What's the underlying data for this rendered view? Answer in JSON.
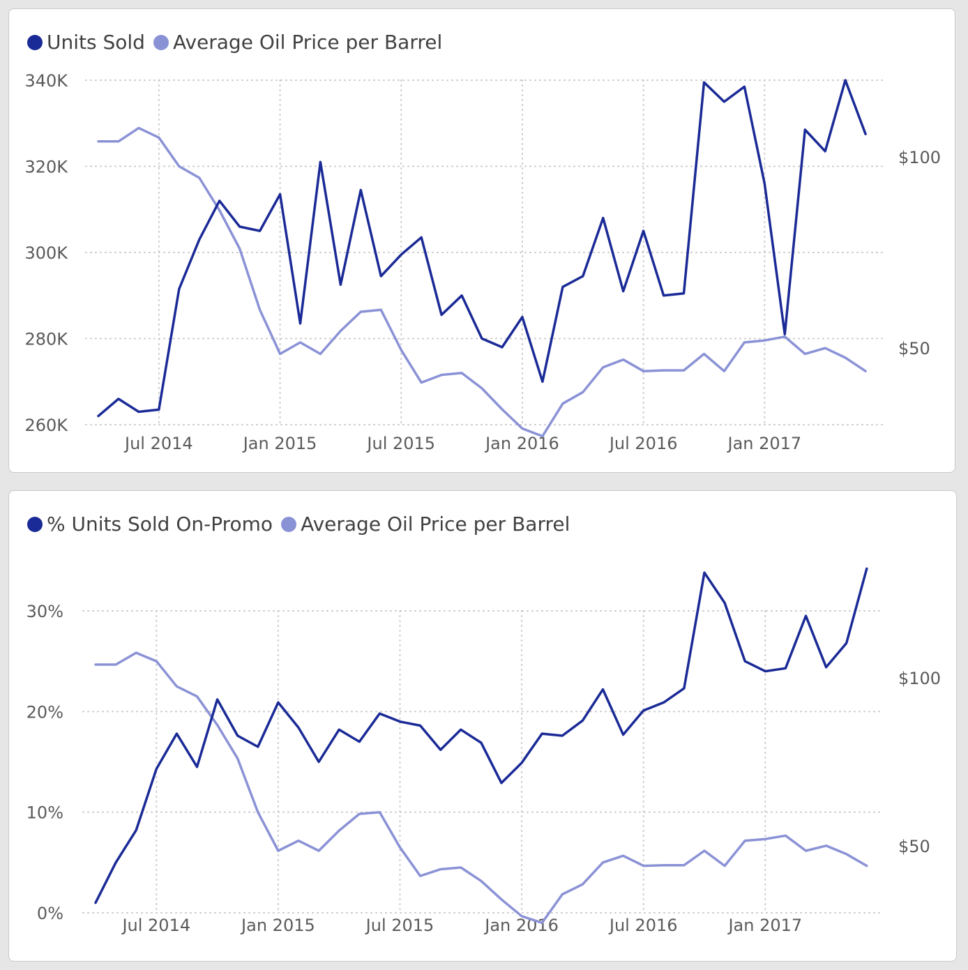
{
  "colors": {
    "series_primary": "#1a2a96",
    "series_secondary": "#8a92d6",
    "grid": "#c8c8c8",
    "text": "#5a5a5a"
  },
  "chart_data": [
    {
      "type": "line",
      "legend_position": "top-left",
      "grid": true,
      "x": [
        "2014-04",
        "2014-05",
        "2014-06",
        "2014-07",
        "2014-08",
        "2014-09",
        "2014-10",
        "2014-11",
        "2014-12",
        "2015-01",
        "2015-02",
        "2015-03",
        "2015-04",
        "2015-05",
        "2015-06",
        "2015-07",
        "2015-08",
        "2015-09",
        "2015-10",
        "2015-11",
        "2015-12",
        "2016-01",
        "2016-02",
        "2016-03",
        "2016-04",
        "2016-05",
        "2016-06",
        "2016-07",
        "2016-08",
        "2016-09",
        "2016-10",
        "2016-11",
        "2016-12",
        "2017-01",
        "2017-02",
        "2017-03",
        "2017-04",
        "2017-05",
        "2017-06"
      ],
      "x_ticks": [
        "Jul 2014",
        "Jan 2015",
        "Jul 2015",
        "Jan 2016",
        "Jul 2016",
        "Jan 2017"
      ],
      "y_left_ticks": [
        "340K",
        "320K",
        "300K",
        "280K",
        "260K"
      ],
      "y_left_lim": [
        260000,
        340000
      ],
      "y_right_ticks": [
        "$100",
        "$50"
      ],
      "y_right_lim": [
        30,
        120
      ],
      "series": [
        {
          "name": "Units Sold",
          "axis": "left",
          "values": [
            262000,
            266000,
            263000,
            263500,
            291500,
            303000,
            312000,
            306000,
            305000,
            313500,
            283500,
            321000,
            292500,
            314500,
            294500,
            299500,
            303500,
            285500,
            290000,
            280000,
            278000,
            285000,
            270000,
            292000,
            294500,
            308000,
            291000,
            305000,
            290000,
            290500,
            339500,
            335000,
            338500,
            316000,
            281000,
            328500,
            323500,
            340000,
            327500
          ]
        },
        {
          "name": "Average Oil Price per Barrel",
          "axis": "right",
          "values": [
            104,
            104,
            107.5,
            105,
            97.5,
            94.5,
            86,
            76,
            60,
            48.5,
            51.5,
            48.5,
            54.5,
            59.5,
            60,
            49.5,
            41,
            43,
            43.5,
            39.5,
            34,
            29,
            27,
            35.5,
            38.5,
            45,
            47,
            44,
            44.2,
            44.2,
            48.5,
            44,
            51.5,
            52,
            53,
            48.5,
            50,
            47.5,
            44
          ]
        }
      ]
    },
    {
      "type": "line",
      "legend_position": "top-left",
      "grid": true,
      "x": [
        "2014-04",
        "2014-05",
        "2014-06",
        "2014-07",
        "2014-08",
        "2014-09",
        "2014-10",
        "2014-11",
        "2014-12",
        "2015-01",
        "2015-02",
        "2015-03",
        "2015-04",
        "2015-05",
        "2015-06",
        "2015-07",
        "2015-08",
        "2015-09",
        "2015-10",
        "2015-11",
        "2015-12",
        "2016-01",
        "2016-02",
        "2016-03",
        "2016-04",
        "2016-05",
        "2016-06",
        "2016-07",
        "2016-08",
        "2016-09",
        "2016-10",
        "2016-11",
        "2016-12",
        "2017-01",
        "2017-02",
        "2017-03",
        "2017-04",
        "2017-05",
        "2017-06"
      ],
      "x_ticks": [
        "Jul 2014",
        "Jan 2015",
        "Jul 2015",
        "Jan 2016",
        "Jul 2016",
        "Jan 2017"
      ],
      "y_left_ticks": [
        "30%",
        "20%",
        "10%",
        "0%"
      ],
      "y_left_lim": [
        0,
        30
      ],
      "y_right_ticks": [
        "$100",
        "$50"
      ],
      "y_right_lim": [
        30,
        120
      ],
      "series": [
        {
          "name": "% Units Sold On-Promo",
          "axis": "left",
          "values": [
            1,
            5,
            8.2,
            14.3,
            17.8,
            14.5,
            21.2,
            17.6,
            16.5,
            20.9,
            18.4,
            15,
            18.2,
            17,
            19.8,
            19,
            18.6,
            16.2,
            18.2,
            16.9,
            12.9,
            14.9,
            17.8,
            17.6,
            19.1,
            22.2,
            17.7,
            20.1,
            20.9,
            22.3,
            33.8,
            30.8,
            25,
            24,
            24.3,
            29.5,
            24.4,
            26.8,
            34.2
          ]
        },
        {
          "name": "Average Oil Price per Barrel",
          "axis": "right",
          "values": [
            104,
            104,
            107.5,
            105,
            97.5,
            94.5,
            86,
            76,
            60,
            48.5,
            51.5,
            48.5,
            54.5,
            59.5,
            60,
            49.5,
            41,
            43,
            43.5,
            39.5,
            34,
            29,
            27,
            35.5,
            38.5,
            45,
            47,
            44,
            44.2,
            44.2,
            48.5,
            44,
            51.5,
            52,
            53,
            48.5,
            50,
            47.5,
            44
          ]
        }
      ]
    }
  ]
}
